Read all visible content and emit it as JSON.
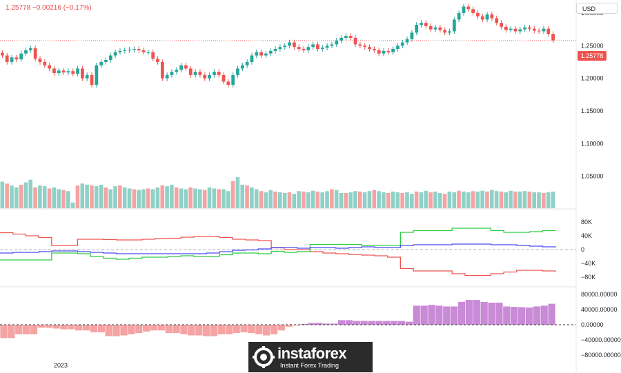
{
  "header": {
    "quote": "1.25778  −0.00216 (−0.17%)"
  },
  "currency": "USD",
  "last_price_label": "1.25778",
  "x_axis": {
    "label": "2023"
  },
  "colors": {
    "up": "#26a69a",
    "down": "#ef5350",
    "vol_up": "#8fd1c7",
    "vol_down": "#f5a3a3",
    "long_line": "#ef5350",
    "short_line": "#2ecc40",
    "net_line": "#4a4af0",
    "hist_pos": "#c98ad6",
    "hist_neg": "#f5a3a3"
  },
  "logo": {
    "name": "instaforex",
    "tagline": "Instant Forex Trading"
  },
  "chart_data": [
    {
      "type": "candlestick",
      "ylim": [
        1.0,
        1.32
      ],
      "y_ticks": [
        "1.30000",
        "1.25000",
        "1.20000",
        "1.15000",
        "1.10000",
        "1.05000"
      ],
      "y_tick_values": [
        1.3,
        1.25,
        1.2,
        1.15,
        1.1,
        1.05
      ],
      "last_price": 1.25778,
      "close": [
        1.235,
        1.225,
        1.232,
        1.229,
        1.238,
        1.243,
        1.246,
        1.23,
        1.225,
        1.22,
        1.215,
        1.208,
        1.212,
        1.209,
        1.211,
        1.207,
        1.215,
        1.2,
        1.205,
        1.19,
        1.22,
        1.225,
        1.228,
        1.235,
        1.24,
        1.242,
        1.243,
        1.244,
        1.245,
        1.243,
        1.24,
        1.24,
        1.23,
        1.225,
        1.2,
        1.205,
        1.21,
        1.213,
        1.22,
        1.215,
        1.205,
        1.21,
        1.205,
        1.2,
        1.205,
        1.21,
        1.205,
        1.195,
        1.19,
        1.205,
        1.215,
        1.22,
        1.225,
        1.235,
        1.24,
        1.235,
        1.238,
        1.242,
        1.245,
        1.248,
        1.25,
        1.255,
        1.248,
        1.245,
        1.243,
        1.248,
        1.252,
        1.245,
        1.247,
        1.25,
        1.252,
        1.258,
        1.262,
        1.265,
        1.262,
        1.252,
        1.25,
        1.248,
        1.245,
        1.243,
        1.238,
        1.242,
        1.24,
        1.245,
        1.25,
        1.255,
        1.26,
        1.27,
        1.282,
        1.285,
        1.28,
        1.275,
        1.278,
        1.274,
        1.27,
        1.272,
        1.29,
        1.3,
        1.31,
        1.306,
        1.3,
        1.295,
        1.29,
        1.298,
        1.292,
        1.285,
        1.279,
        1.274,
        1.276,
        1.272,
        1.275,
        1.278,
        1.276,
        1.273,
        1.272,
        1.276,
        1.268,
        1.258
      ],
      "high_low_spread": 0.008
    },
    {
      "type": "bar",
      "title": "volume",
      "values": [
        0.7,
        0.65,
        0.6,
        0.55,
        0.62,
        0.68,
        0.75,
        0.55,
        0.6,
        0.58,
        0.52,
        0.55,
        0.5,
        0.48,
        0.45,
        0.15,
        0.6,
        0.65,
        0.62,
        0.6,
        0.58,
        0.62,
        0.55,
        0.5,
        0.58,
        0.6,
        0.55,
        0.52,
        0.5,
        0.48,
        0.5,
        0.52,
        0.5,
        0.55,
        0.6,
        0.58,
        0.62,
        0.55,
        0.52,
        0.5,
        0.55,
        0.52,
        0.5,
        0.48,
        0.55,
        0.52,
        0.5,
        0.5,
        0.45,
        0.72,
        0.82,
        0.62,
        0.6,
        0.55,
        0.5,
        0.45,
        0.42,
        0.48,
        0.44,
        0.42,
        0.4,
        0.42,
        0.38,
        0.45,
        0.44,
        0.42,
        0.46,
        0.44,
        0.42,
        0.45,
        0.5,
        0.48,
        0.4,
        0.4,
        0.42,
        0.45,
        0.44,
        0.42,
        0.45,
        0.48,
        0.45,
        0.42,
        0.4,
        0.44,
        0.42,
        0.4,
        0.42,
        0.38,
        0.44,
        0.42,
        0.46,
        0.42,
        0.44,
        0.4,
        0.38,
        0.44,
        0.42,
        0.46,
        0.44,
        0.42,
        0.45,
        0.44,
        0.46,
        0.44,
        0.48,
        0.45,
        0.44,
        0.42,
        0.46,
        0.44,
        0.44,
        0.45,
        0.44,
        0.42,
        0.42,
        0.4,
        0.42,
        0.44
      ]
    },
    {
      "type": "line",
      "title": "positions",
      "ylim": [
        -100000,
        100000
      ],
      "y_ticks": [
        "80K",
        "40K",
        "0",
        "−40K",
        "−80K"
      ],
      "y_tick_values": [
        80000,
        40000,
        0,
        -40000,
        -80000
      ],
      "series": [
        {
          "values": [
            49000,
            45000,
            40000,
            35000,
            12000,
            12000,
            30000,
            30000,
            29000,
            28000,
            28000,
            30000,
            32000,
            33000,
            36000,
            38000,
            38000,
            35000,
            30000,
            28000,
            26000,
            5000,
            0,
            0,
            -6000,
            -10000,
            -12000,
            -14000,
            -16000,
            -18000,
            -22000,
            -55000,
            -62000,
            -62000,
            -62000,
            -70000,
            -75000,
            -75000,
            -70000,
            -65000,
            -60000,
            -60000,
            -62000,
            -65000
          ]
        },
        {
          "values": [
            -30000,
            -30000,
            -30000,
            -30000,
            -10000,
            -10000,
            -12000,
            -20000,
            -25000,
            -28000,
            -25000,
            -22000,
            -22000,
            -20000,
            -18000,
            -20000,
            -20000,
            -15000,
            -10000,
            -10000,
            -12000,
            -5000,
            -8000,
            -6000,
            15000,
            15000,
            15000,
            15000,
            12000,
            12000,
            12000,
            50000,
            55000,
            55000,
            55000,
            62000,
            62000,
            62000,
            55000,
            50000,
            50000,
            52000,
            55000,
            57000
          ]
        },
        {
          "values": [
            -10000,
            -8000,
            -8000,
            -6000,
            -4000,
            -4000,
            -6000,
            -8000,
            -10000,
            -12000,
            -12000,
            -12000,
            -12000,
            -12000,
            -12000,
            -12000,
            -10000,
            -6000,
            -2000,
            -1000,
            2000,
            6000,
            6000,
            4000,
            6000,
            6000,
            4000,
            6000,
            8000,
            6000,
            6000,
            12000,
            14000,
            14000,
            14000,
            16000,
            16000,
            16000,
            14000,
            14000,
            12000,
            10000,
            8000,
            6000
          ]
        }
      ]
    },
    {
      "type": "bar",
      "title": "histogram",
      "ylim": [
        -85000,
        85000
      ],
      "y_ticks": [
        "80000.00000",
        "40000.00000",
        "0.00000",
        "−40000.00000",
        "−80000.00000"
      ],
      "y_tick_values": [
        80000,
        40000,
        0,
        -40000,
        -80000
      ],
      "values": [
        -35000,
        -35000,
        -25000,
        -25000,
        -25000,
        -8000,
        -8000,
        -10000,
        -12000,
        -12000,
        -15000,
        -15000,
        -20000,
        -20000,
        -30000,
        -30000,
        -28000,
        -25000,
        -22000,
        -18000,
        -15000,
        -15000,
        -22000,
        -22000,
        -25000,
        -28000,
        -28000,
        -30000,
        -30000,
        -25000,
        -25000,
        -22000,
        -20000,
        -22000,
        -25000,
        -28000,
        -25000,
        -15000,
        -5000,
        -2000,
        2000,
        5000,
        5000,
        3000,
        3000,
        12000,
        12000,
        10000,
        10000,
        10000,
        10000,
        10000,
        10000,
        10000,
        8000,
        50000,
        50000,
        52000,
        50000,
        48000,
        48000,
        60000,
        65000,
        65000,
        60000,
        58000,
        58000,
        48000,
        47000,
        46000,
        45000,
        48000,
        50000,
        55000
      ]
    }
  ]
}
